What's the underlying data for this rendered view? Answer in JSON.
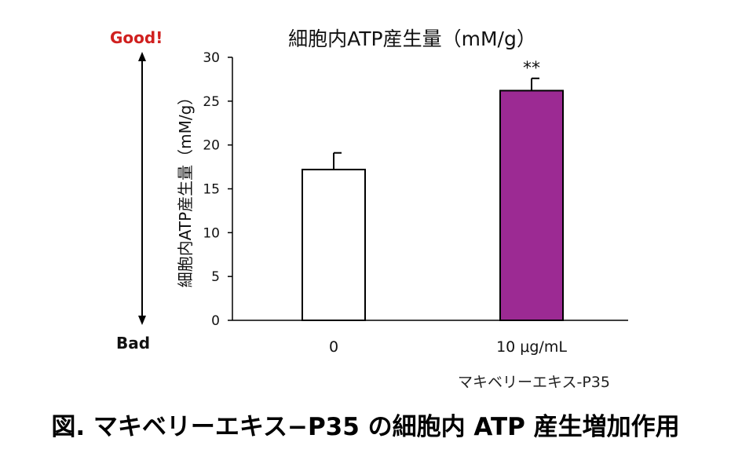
{
  "annotations": {
    "good_label": "Good!",
    "bad_label": "Bad"
  },
  "caption": "図. マキベリーエキス−P35 の細胞内 ATP 産生増加作用",
  "chart_data": {
    "type": "bar",
    "title": "細胞内ATP産生量（mM/g）",
    "ylabel": "細胞内ATP産生量（mM/g）",
    "xlabel": "マキベリーエキス-P35",
    "categories": [
      "0",
      "10 μg/mL"
    ],
    "values": [
      17.2,
      26.2
    ],
    "errors": [
      1.9,
      1.4
    ],
    "significance": [
      "",
      "**"
    ],
    "ylim": [
      0,
      30
    ],
    "yticks": [
      0,
      5,
      10,
      15,
      20,
      25,
      30
    ],
    "bar_fills": [
      "#ffffff",
      "#9c2a93"
    ],
    "bar_stroke": "#000000",
    "good_color": "#d0201f",
    "grid": false
  }
}
